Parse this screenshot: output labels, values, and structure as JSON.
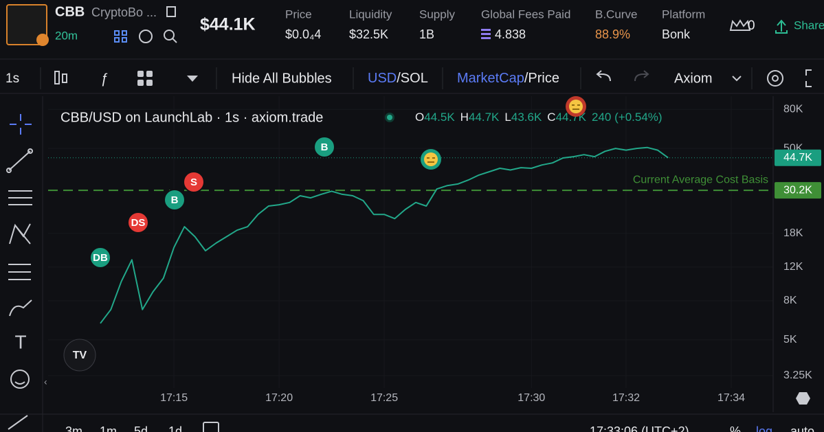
{
  "header": {
    "ticker": "CBB",
    "name": "CryptoBo ...",
    "age": "20m",
    "market_cap": "$44.1K",
    "stats": [
      {
        "label": "Price",
        "value": "$0.0₄4"
      },
      {
        "label": "Liquidity",
        "value": "$32.5K"
      },
      {
        "label": "Supply",
        "value": "1B"
      },
      {
        "label": "Global Fees Paid",
        "value": "4.838"
      },
      {
        "label": "B.Curve",
        "value": "88.9%"
      },
      {
        "label": "Platform",
        "value": "Bonk"
      }
    ],
    "watchers": "0",
    "share": "Share"
  },
  "toolbar": {
    "interval": "1s",
    "bubbles": "Hide All Bubbles",
    "currency": "USD",
    "currency_alt": "/SOL",
    "mode": "MarketCap",
    "mode_alt": "/Price",
    "layout": "Axiom"
  },
  "legend": {
    "title": "CBB/USD on LaunchLab · 1s · axiom.trade",
    "o_label": "O",
    "o": "44.5K",
    "h_label": "H",
    "h": "44.7K",
    "l_label": "L",
    "l": "43.6K",
    "c_label": "C",
    "c": "44.7K",
    "change": "240 (+0.54%)"
  },
  "markers": [
    "DB",
    "DS",
    "B",
    "S",
    "B"
  ],
  "footer": {
    "ranges": [
      "3m",
      "1m",
      "5d",
      "1d"
    ],
    "clock": "17:33:06 (UTC+2)",
    "percent": "%",
    "log": "log",
    "auto": "auto"
  },
  "chart_data": {
    "type": "line",
    "log_scale": true,
    "grid": true,
    "categories": [
      null,
      null,
      null,
      null,
      null,
      null,
      null,
      "17:15",
      null,
      null,
      null,
      null,
      null,
      null,
      null,
      null,
      null,
      "17:20",
      null,
      null,
      null,
      null,
      null,
      null,
      null,
      null,
      null,
      "17:25",
      null,
      null,
      null,
      null,
      null,
      null,
      null,
      null,
      null,
      null,
      null,
      null,
      null,
      "17:30",
      null,
      null,
      null,
      null,
      null,
      null,
      null,
      null,
      "17:32",
      null,
      null,
      null,
      null,
      null,
      null,
      null,
      null,
      null,
      "17:34"
    ],
    "series": [
      {
        "name": "CBB/USD",
        "color": "#22a88a",
        "values": [
          6100,
          7200,
          10100,
          13100,
          7200,
          8900,
          10500,
          15200,
          19500,
          17300,
          14600,
          16000,
          17300,
          18700,
          19500,
          22600,
          25000,
          25400,
          26100,
          28300,
          27600,
          28800,
          29900,
          28800,
          28300,
          26700,
          22600,
          22600,
          21500,
          24000,
          26100,
          25000,
          30700,
          32000,
          32600,
          34200,
          36300,
          37800,
          39400,
          38600,
          39700,
          39400,
          41000,
          42000,
          44600,
          45300,
          46400,
          45300,
          48300,
          50000,
          49000,
          50000,
          50600,
          49000,
          44700,
          null,
          null,
          null,
          null,
          null,
          null
        ]
      }
    ],
    "ylim": [
      2800,
      90000
    ],
    "yticks": [
      {
        "value": 3250,
        "label": "3.25K"
      },
      {
        "value": 5000,
        "label": "5K"
      },
      {
        "value": 8000,
        "label": "8K"
      },
      {
        "value": 12000,
        "label": "12K"
      },
      {
        "value": 18000,
        "label": "18K"
      },
      {
        "value": 50000,
        "label": "50K"
      },
      {
        "value": 80000,
        "label": "80K"
      }
    ],
    "price_lines": [
      {
        "value": 44700,
        "label": "44.7K",
        "color": "#1a9e80",
        "style": "dotted"
      },
      {
        "value": 30200,
        "label": "30.2K",
        "color": "#3f8f36",
        "style": "dashed",
        "name": "Current Average Cost Basis"
      }
    ]
  }
}
